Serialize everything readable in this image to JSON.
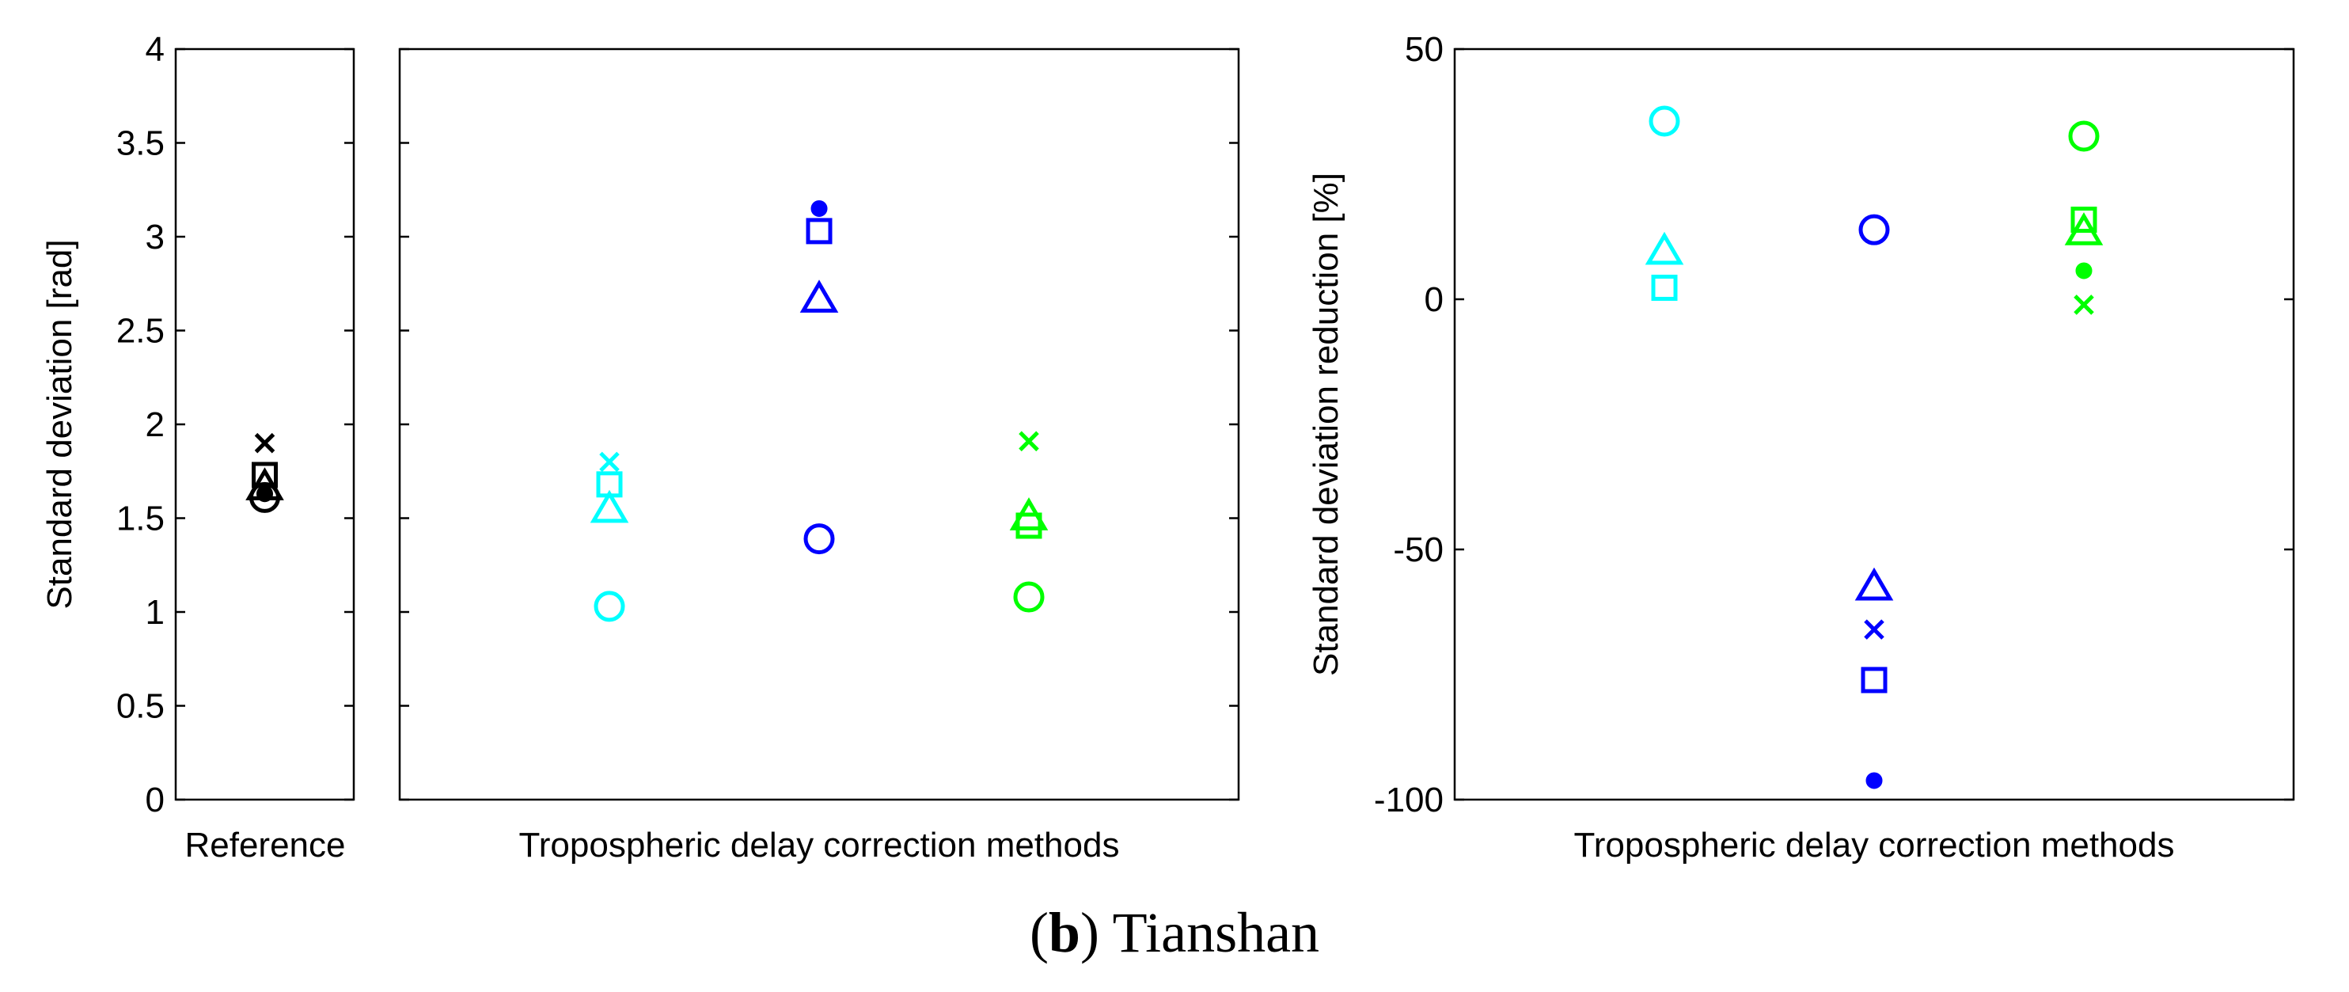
{
  "caption": {
    "letter": "b",
    "text": "Tianshan"
  },
  "chart_data": [
    {
      "type": "scatter",
      "name": "reference",
      "title": "",
      "xlabel": "Reference",
      "ylabel": "Standard deviation [rad]",
      "ylim": [
        0,
        4
      ],
      "yticks": [
        "0",
        "0.5",
        "1",
        "1.5",
        "2",
        "2.5",
        "3",
        "3.5",
        "4"
      ],
      "xlim": [
        0,
        1
      ],
      "points": [
        {
          "x": 0.5,
          "y": 1.9,
          "marker": "x",
          "color": "#000000"
        },
        {
          "x": 0.5,
          "y": 1.73,
          "marker": "square",
          "color": "#000000"
        },
        {
          "x": 0.5,
          "y": 1.67,
          "marker": "triangle",
          "color": "#000000"
        },
        {
          "x": 0.5,
          "y": 1.63,
          "marker": "dot",
          "color": "#000000"
        },
        {
          "x": 0.5,
          "y": 1.61,
          "marker": "circle",
          "color": "#000000"
        }
      ]
    },
    {
      "type": "scatter",
      "name": "methods-std",
      "title": "",
      "xlabel": "Tropospheric delay correction methods",
      "ylabel": "",
      "ylim": [
        0,
        4
      ],
      "xlim": [
        0,
        4
      ],
      "points": [
        {
          "x": 1,
          "y": 1.8,
          "marker": "x",
          "color": "#00ffff"
        },
        {
          "x": 1,
          "y": 1.68,
          "marker": "square",
          "color": "#00ffff"
        },
        {
          "x": 1,
          "y": 1.55,
          "marker": "triangle",
          "color": "#00ffff"
        },
        {
          "x": 1,
          "y": 1.03,
          "marker": "circle",
          "color": "#00ffff"
        },
        {
          "x": 2,
          "y": 3.15,
          "marker": "dot",
          "color": "#0000ff"
        },
        {
          "x": 2,
          "y": 3.03,
          "marker": "square",
          "color": "#0000ff"
        },
        {
          "x": 2,
          "y": 2.67,
          "marker": "triangle",
          "color": "#0000ff"
        },
        {
          "x": 2,
          "y": 1.39,
          "marker": "circle",
          "color": "#0000ff"
        },
        {
          "x": 3,
          "y": 1.91,
          "marker": "x",
          "color": "#00ff00"
        },
        {
          "x": 3,
          "y": 1.51,
          "marker": "triangle",
          "color": "#00ff00"
        },
        {
          "x": 3,
          "y": 1.46,
          "marker": "square",
          "color": "#00ff00"
        },
        {
          "x": 3,
          "y": 1.08,
          "marker": "circle",
          "color": "#00ff00"
        }
      ]
    },
    {
      "type": "scatter",
      "name": "methods-reduction",
      "title": "",
      "xlabel": "Tropospheric delay correction methods",
      "ylabel": "Standard deviation reduction [%]",
      "ylim": [
        -100,
        50
      ],
      "yticks": [
        "-100",
        "-50",
        "0",
        "50"
      ],
      "xlim": [
        0,
        4
      ],
      "points": [
        {
          "x": 1,
          "y": 35.6,
          "marker": "circle",
          "color": "#00ffff"
        },
        {
          "x": 1,
          "y": 9.7,
          "marker": "triangle",
          "color": "#00ffff"
        },
        {
          "x": 1,
          "y": 2.3,
          "marker": "square",
          "color": "#00ffff"
        },
        {
          "x": 2,
          "y": 13.9,
          "marker": "circle",
          "color": "#0000ff"
        },
        {
          "x": 2,
          "y": -57.4,
          "marker": "triangle",
          "color": "#0000ff"
        },
        {
          "x": 2,
          "y": -66.0,
          "marker": "x",
          "color": "#0000ff"
        },
        {
          "x": 2,
          "y": -76.1,
          "marker": "square",
          "color": "#0000ff"
        },
        {
          "x": 2,
          "y": -96.2,
          "marker": "dot",
          "color": "#0000ff"
        },
        {
          "x": 3,
          "y": 32.6,
          "marker": "circle",
          "color": "#00ff00"
        },
        {
          "x": 3,
          "y": 15.9,
          "marker": "square",
          "color": "#00ff00"
        },
        {
          "x": 3,
          "y": 13.6,
          "marker": "triangle",
          "color": "#00ff00"
        },
        {
          "x": 3,
          "y": 5.7,
          "marker": "dot",
          "color": "#00ff00"
        },
        {
          "x": 3,
          "y": -1.1,
          "marker": "x",
          "color": "#00ff00"
        }
      ]
    }
  ]
}
